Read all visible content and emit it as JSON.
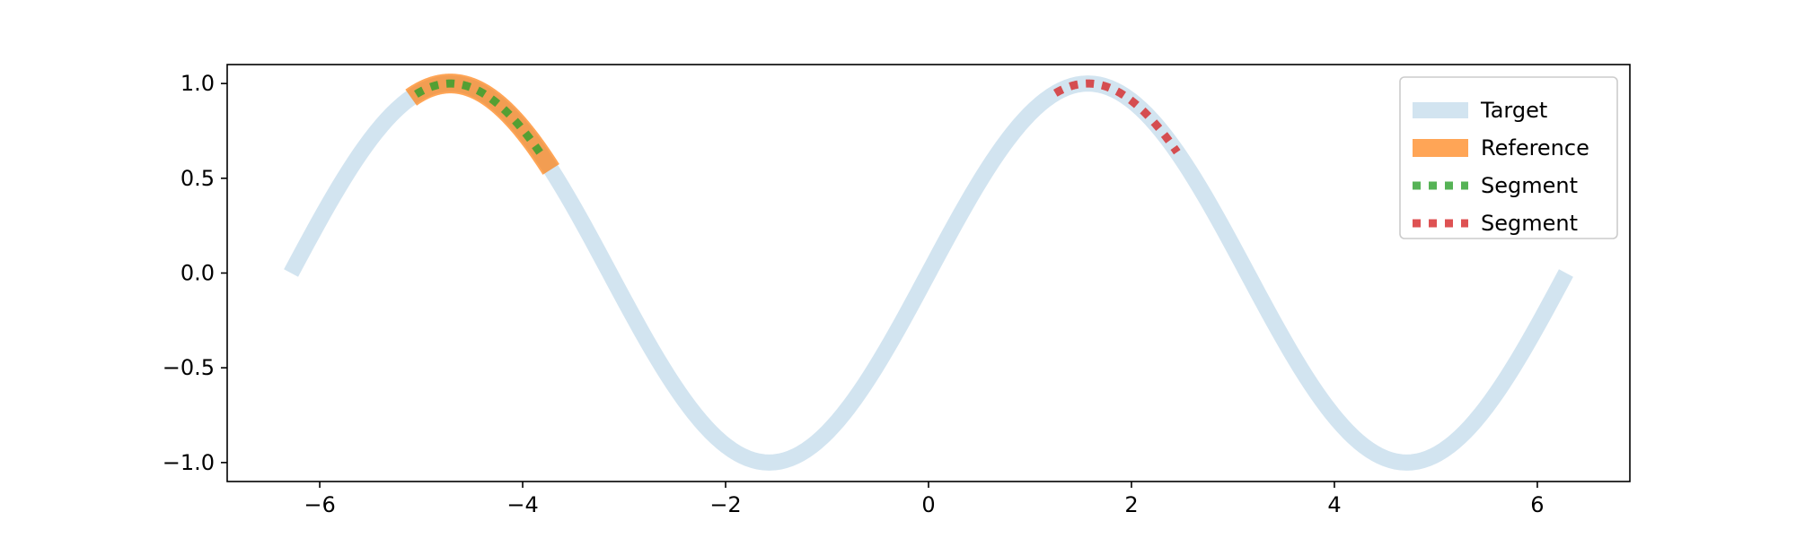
{
  "chart_data": {
    "type": "line",
    "xlim": [
      -6.912,
      6.912
    ],
    "ylim": [
      -1.1,
      1.1
    ],
    "x_ticks": [
      -6,
      -4,
      -2,
      0,
      2,
      4,
      6
    ],
    "x_tick_labels": [
      "−6",
      "−4",
      "−2",
      "0",
      "2",
      "4",
      "6"
    ],
    "y_ticks": [
      -1.0,
      -0.5,
      0.0,
      0.5,
      1.0
    ],
    "y_tick_labels": [
      "−1.0",
      "−0.5",
      "0.0",
      "0.5",
      "1.0"
    ],
    "grid": false,
    "legend_position": "top-right",
    "series": [
      {
        "name": "Target",
        "function": "sin",
        "x_range": [
          -6.283,
          6.283
        ],
        "color": "#1f77b4",
        "opacity": 0.2,
        "style": "solid"
      },
      {
        "name": "Reference",
        "function": "sin",
        "x_range": [
          -5.1,
          -3.72
        ],
        "color": "#ff7f0e",
        "opacity": 0.7,
        "style": "solid"
      },
      {
        "name": "Segment",
        "function": "sin",
        "x_range": [
          -5.05,
          -3.8
        ],
        "color": "#2ca02c",
        "opacity": 0.8,
        "style": "dotted"
      },
      {
        "name": "Segment",
        "function": "sin",
        "x_range": [
          1.25,
          2.45
        ],
        "color": "#d62728",
        "opacity": 0.8,
        "style": "dotted"
      }
    ]
  }
}
